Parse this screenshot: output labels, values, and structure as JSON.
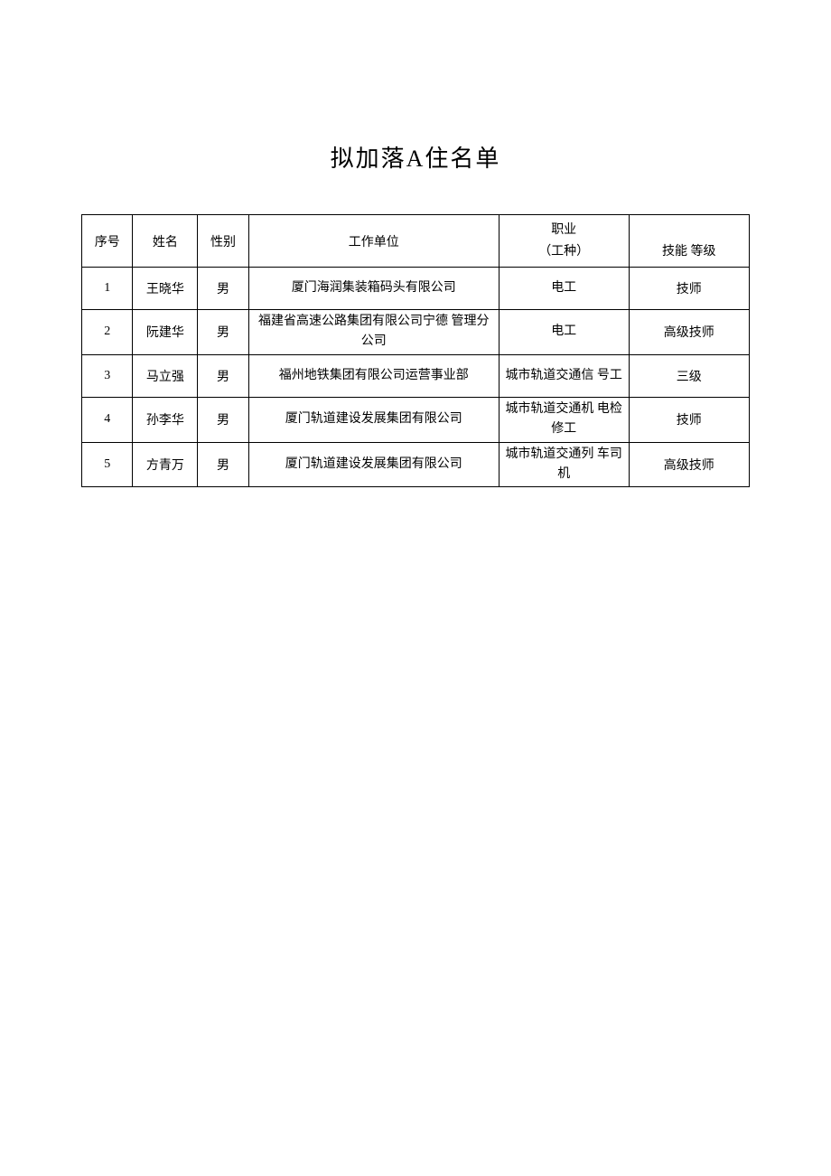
{
  "title": "拟加落A住名单",
  "columns": {
    "seq": "序号",
    "name": "姓名",
    "gender": "性别",
    "workplace": "工作单位",
    "occupation_line1": "职业",
    "occupation_line2": "（工种）",
    "skill": "技能 等级"
  },
  "rows": [
    {
      "seq": "1",
      "name": "王晓华",
      "gender": "男",
      "workplace": "厦门海润集装箱码头有限公司",
      "occupation": "电工",
      "skill": "技师"
    },
    {
      "seq": "2",
      "name": "阮建华",
      "gender": "男",
      "workplace": "福建省高速公路集团有限公司宁德 管理分公司",
      "occupation": "电工",
      "skill": "高级技师"
    },
    {
      "seq": "3",
      "name": "马立强",
      "gender": "男",
      "workplace": "福州地铁集团有限公司运营事业部",
      "occupation": "城市轨道交通信 号工",
      "skill": "三级"
    },
    {
      "seq": "4",
      "name": "孙李华",
      "gender": "男",
      "workplace": "厦门轨道建设发展集团有限公司",
      "occupation": "城市轨道交通机 电检修工",
      "skill": "技师"
    },
    {
      "seq": "5",
      "name": "方青万",
      "gender": "男",
      "workplace": "厦门轨道建设发展集团有限公司",
      "occupation": "城市轨道交通列 车司机",
      "skill": "高级技师"
    }
  ]
}
